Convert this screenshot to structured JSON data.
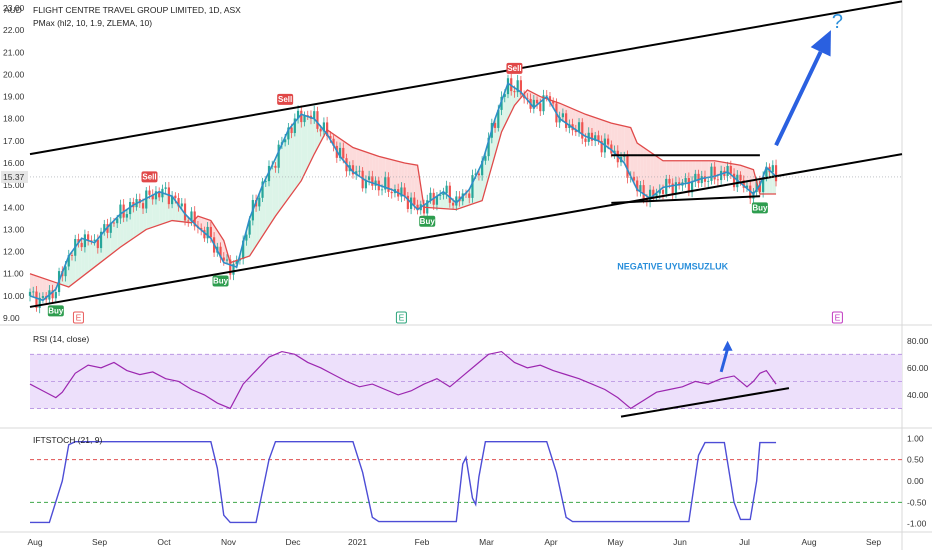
{
  "chart_data": [
    {
      "type": "candlestick",
      "title": "FLIGHT CENTRE TRAVEL GROUP LIMITED, 1D, ASX",
      "indicator_label": "PMax (hl2, 10, 1.9, ZLEMA, 10)",
      "currency": "AUD",
      "last_price": "15.37",
      "ylim": [
        9,
        23
      ],
      "y_ticks": [
        "9.00",
        "10.00",
        "11.00",
        "12.00",
        "13.00",
        "14.00",
        "15.00",
        "16.00",
        "17.00",
        "18.00",
        "19.00",
        "20.00",
        "21.00",
        "22.00",
        "23.00"
      ],
      "x_ticks": [
        "Aug",
        "Sep",
        "Oct",
        "Nov",
        "Dec",
        "2021",
        "Feb",
        "Mar",
        "Apr",
        "May",
        "Jun",
        "Jul",
        "Aug",
        "Sep"
      ],
      "price_path": [
        [
          0,
          10.0
        ],
        [
          4,
          9.8
        ],
        [
          8,
          10.3
        ],
        [
          12,
          11.8
        ],
        [
          16,
          12.6
        ],
        [
          20,
          12.4
        ],
        [
          24,
          13.1
        ],
        [
          28,
          13.7
        ],
        [
          32,
          14.1
        ],
        [
          36,
          14.4
        ],
        [
          40,
          14.7
        ],
        [
          44,
          14.5
        ],
        [
          48,
          13.7
        ],
        [
          52,
          13.1
        ],
        [
          56,
          12.6
        ],
        [
          60,
          11.5
        ],
        [
          64,
          11.3
        ],
        [
          68,
          13.5
        ],
        [
          72,
          15.0
        ],
        [
          76,
          16.2
        ],
        [
          80,
          17.5
        ],
        [
          84,
          18.2
        ],
        [
          88,
          18.0
        ],
        [
          92,
          17.3
        ],
        [
          96,
          16.3
        ],
        [
          100,
          15.6
        ],
        [
          104,
          15.2
        ],
        [
          108,
          15.0
        ],
        [
          112,
          14.8
        ],
        [
          116,
          14.5
        ],
        [
          120,
          13.9
        ],
        [
          124,
          14.3
        ],
        [
          128,
          14.7
        ],
        [
          132,
          14.2
        ],
        [
          136,
          14.8
        ],
        [
          140,
          16.0
        ],
        [
          144,
          18.0
        ],
        [
          148,
          19.6
        ],
        [
          152,
          19.2
        ],
        [
          156,
          18.5
        ],
        [
          160,
          19.0
        ],
        [
          164,
          18.0
        ],
        [
          168,
          17.6
        ],
        [
          172,
          17.2
        ],
        [
          176,
          17.0
        ],
        [
          180,
          16.6
        ],
        [
          184,
          16.0
        ],
        [
          188,
          14.8
        ],
        [
          192,
          14.4
        ],
        [
          196,
          14.9
        ],
        [
          200,
          15.0
        ],
        [
          204,
          15.1
        ],
        [
          208,
          15.3
        ],
        [
          212,
          15.4
        ],
        [
          216,
          15.6
        ],
        [
          220,
          15.1
        ],
        [
          224,
          14.6
        ],
        [
          226,
          15.0
        ],
        [
          228,
          15.8
        ],
        [
          231,
          15.4
        ]
      ],
      "pmax_band": [
        [
          0,
          11.0
        ],
        [
          8,
          10.6
        ],
        [
          12,
          10.4
        ],
        [
          20,
          11.3
        ],
        [
          28,
          12.2
        ],
        [
          36,
          13.0
        ],
        [
          44,
          13.4
        ],
        [
          50,
          13.3
        ],
        [
          52,
          13.6
        ],
        [
          56,
          13.4
        ],
        [
          60,
          12.5
        ],
        [
          62,
          11.5
        ],
        [
          68,
          11.8
        ],
        [
          76,
          13.6
        ],
        [
          84,
          15.2
        ],
        [
          88,
          16.4
        ],
        [
          92,
          17.5
        ],
        [
          100,
          16.7
        ],
        [
          108,
          16.3
        ],
        [
          116,
          16.0
        ],
        [
          120,
          15.9
        ],
        [
          122,
          14.0
        ],
        [
          132,
          13.9
        ],
        [
          140,
          14.3
        ],
        [
          146,
          17.4
        ],
        [
          150,
          18.6
        ],
        [
          154,
          19.3
        ],
        [
          158,
          19.0
        ],
        [
          164,
          18.7
        ],
        [
          172,
          18.2
        ],
        [
          180,
          17.8
        ],
        [
          186,
          17.6
        ],
        [
          188,
          16.9
        ],
        [
          196,
          16.1
        ],
        [
          204,
          16.1
        ],
        [
          212,
          16.1
        ],
        [
          220,
          15.9
        ],
        [
          224,
          15.7
        ],
        [
          226,
          14.6
        ],
        [
          231,
          14.6
        ]
      ],
      "signals": [
        {
          "label": "Buy",
          "x": 8,
          "price": 9.75
        },
        {
          "label": "Sell",
          "x": 37,
          "price": 14.9
        },
        {
          "label": "Buy",
          "x": 59,
          "price": 11.1
        },
        {
          "label": "Sell",
          "x": 79,
          "price": 18.4
        },
        {
          "label": "Buy",
          "x": 123,
          "price": 13.8
        },
        {
          "label": "Sell",
          "x": 150,
          "price": 19.8
        },
        {
          "label": "Buy",
          "x": 226,
          "price": 14.4
        }
      ],
      "earnings_markers": [
        {
          "label": "E",
          "x": 15,
          "color": "#e85a5a"
        },
        {
          "label": "E",
          "x": 115,
          "color": "#2aa37a"
        },
        {
          "label": "E",
          "x": 250,
          "color": "#c13bc1"
        }
      ],
      "annotations": [
        {
          "text": "NEGATIVE UYUMSUZLUK",
          "color": "#2a8fdb"
        },
        {
          "text": "?",
          "color": "#2a8fdb"
        }
      ],
      "trendlines": [
        {
          "from": [
            0,
            16.4
          ],
          "to": [
            270,
            23.3
          ],
          "width": 2
        },
        {
          "from": [
            0,
            9.5
          ],
          "to": [
            270,
            16.4
          ],
          "width": 2
        },
        {
          "from": [
            180,
            16.35
          ],
          "to": [
            226,
            16.35
          ],
          "width": 2
        },
        {
          "from": [
            180,
            14.2
          ],
          "to": [
            226,
            14.5
          ],
          "width": 2
        }
      ]
    },
    {
      "type": "line",
      "label": "RSI (14, close)",
      "ylim": [
        20,
        85
      ],
      "y_ticks": [
        "40.00",
        "60.00",
        "80.00"
      ],
      "band": [
        30,
        70
      ],
      "values": [
        [
          0,
          48
        ],
        [
          4,
          43
        ],
        [
          8,
          38
        ],
        [
          10,
          42
        ],
        [
          14,
          56
        ],
        [
          18,
          62
        ],
        [
          22,
          60
        ],
        [
          26,
          64
        ],
        [
          30,
          58
        ],
        [
          34,
          55
        ],
        [
          38,
          57
        ],
        [
          42,
          52
        ],
        [
          46,
          50
        ],
        [
          50,
          44
        ],
        [
          54,
          40
        ],
        [
          58,
          34
        ],
        [
          62,
          30
        ],
        [
          66,
          48
        ],
        [
          70,
          58
        ],
        [
          74,
          68
        ],
        [
          78,
          72
        ],
        [
          82,
          70
        ],
        [
          86,
          64
        ],
        [
          90,
          60
        ],
        [
          94,
          55
        ],
        [
          98,
          50
        ],
        [
          102,
          46
        ],
        [
          106,
          48
        ],
        [
          110,
          44
        ],
        [
          114,
          40
        ],
        [
          118,
          43
        ],
        [
          122,
          48
        ],
        [
          126,
          52
        ],
        [
          130,
          46
        ],
        [
          134,
          54
        ],
        [
          138,
          62
        ],
        [
          142,
          70
        ],
        [
          146,
          72
        ],
        [
          150,
          64
        ],
        [
          154,
          60
        ],
        [
          158,
          62
        ],
        [
          162,
          58
        ],
        [
          166,
          55
        ],
        [
          170,
          52
        ],
        [
          174,
          48
        ],
        [
          178,
          44
        ],
        [
          182,
          38
        ],
        [
          184,
          34
        ],
        [
          186,
          30
        ],
        [
          190,
          36
        ],
        [
          194,
          42
        ],
        [
          198,
          44
        ],
        [
          202,
          46
        ],
        [
          206,
          50
        ],
        [
          210,
          48
        ],
        [
          214,
          52
        ],
        [
          218,
          54
        ],
        [
          222,
          46
        ],
        [
          224,
          50
        ],
        [
          226,
          56
        ],
        [
          228,
          58
        ],
        [
          231,
          48
        ]
      ],
      "trendline": {
        "from": [
          183,
          24
        ],
        "to": [
          235,
          45
        ]
      }
    },
    {
      "type": "line",
      "label": "IFTSTOCH (21, 9)",
      "ylim": [
        -1.1,
        1.1
      ],
      "y_ticks": [
        "1.00",
        "0.50",
        "0.00",
        "-0.50",
        "-1.00"
      ],
      "levels": [
        0.5,
        -0.5
      ],
      "values": [
        [
          0,
          -0.97
        ],
        [
          6,
          -0.97
        ],
        [
          10,
          0.0
        ],
        [
          12,
          0.85
        ],
        [
          14,
          0.92
        ],
        [
          56,
          0.92
        ],
        [
          58,
          0.3
        ],
        [
          60,
          -0.8
        ],
        [
          62,
          -0.97
        ],
        [
          70,
          -0.97
        ],
        [
          74,
          0.5
        ],
        [
          76,
          0.92
        ],
        [
          100,
          0.92
        ],
        [
          103,
          0.2
        ],
        [
          106,
          -0.85
        ],
        [
          108,
          -0.95
        ],
        [
          132,
          -0.95
        ],
        [
          134,
          0.4
        ],
        [
          135,
          0.55
        ],
        [
          137,
          -0.4
        ],
        [
          138,
          -0.55
        ],
        [
          139,
          0.1
        ],
        [
          141,
          0.92
        ],
        [
          160,
          0.92
        ],
        [
          163,
          0.2
        ],
        [
          166,
          -0.85
        ],
        [
          168,
          -0.95
        ],
        [
          204,
          -0.95
        ],
        [
          207,
          0.6
        ],
        [
          209,
          0.9
        ],
        [
          215,
          0.9
        ],
        [
          218,
          -0.5
        ],
        [
          220,
          -0.9
        ],
        [
          223,
          -0.9
        ],
        [
          225,
          0.0
        ],
        [
          226,
          0.9
        ],
        [
          231,
          0.9
        ]
      ]
    }
  ],
  "colors": {
    "candle_up": "#26a69a",
    "candle_down": "#ef5350",
    "pmax_line": "#e04a4a",
    "ma_line": "#2f8ec7",
    "fill_up": "#d6f2e4",
    "fill_down": "#fbd5d5",
    "rsi_line": "#9c27b0",
    "rsi_band": "#ede0fb",
    "ift_line": "#4d4dd6",
    "ift_upper": "#e05050",
    "ift_lower": "#3ea84a",
    "buy": "#2e9d4f",
    "sell": "#e04848",
    "arrow": "#2a60e0"
  }
}
